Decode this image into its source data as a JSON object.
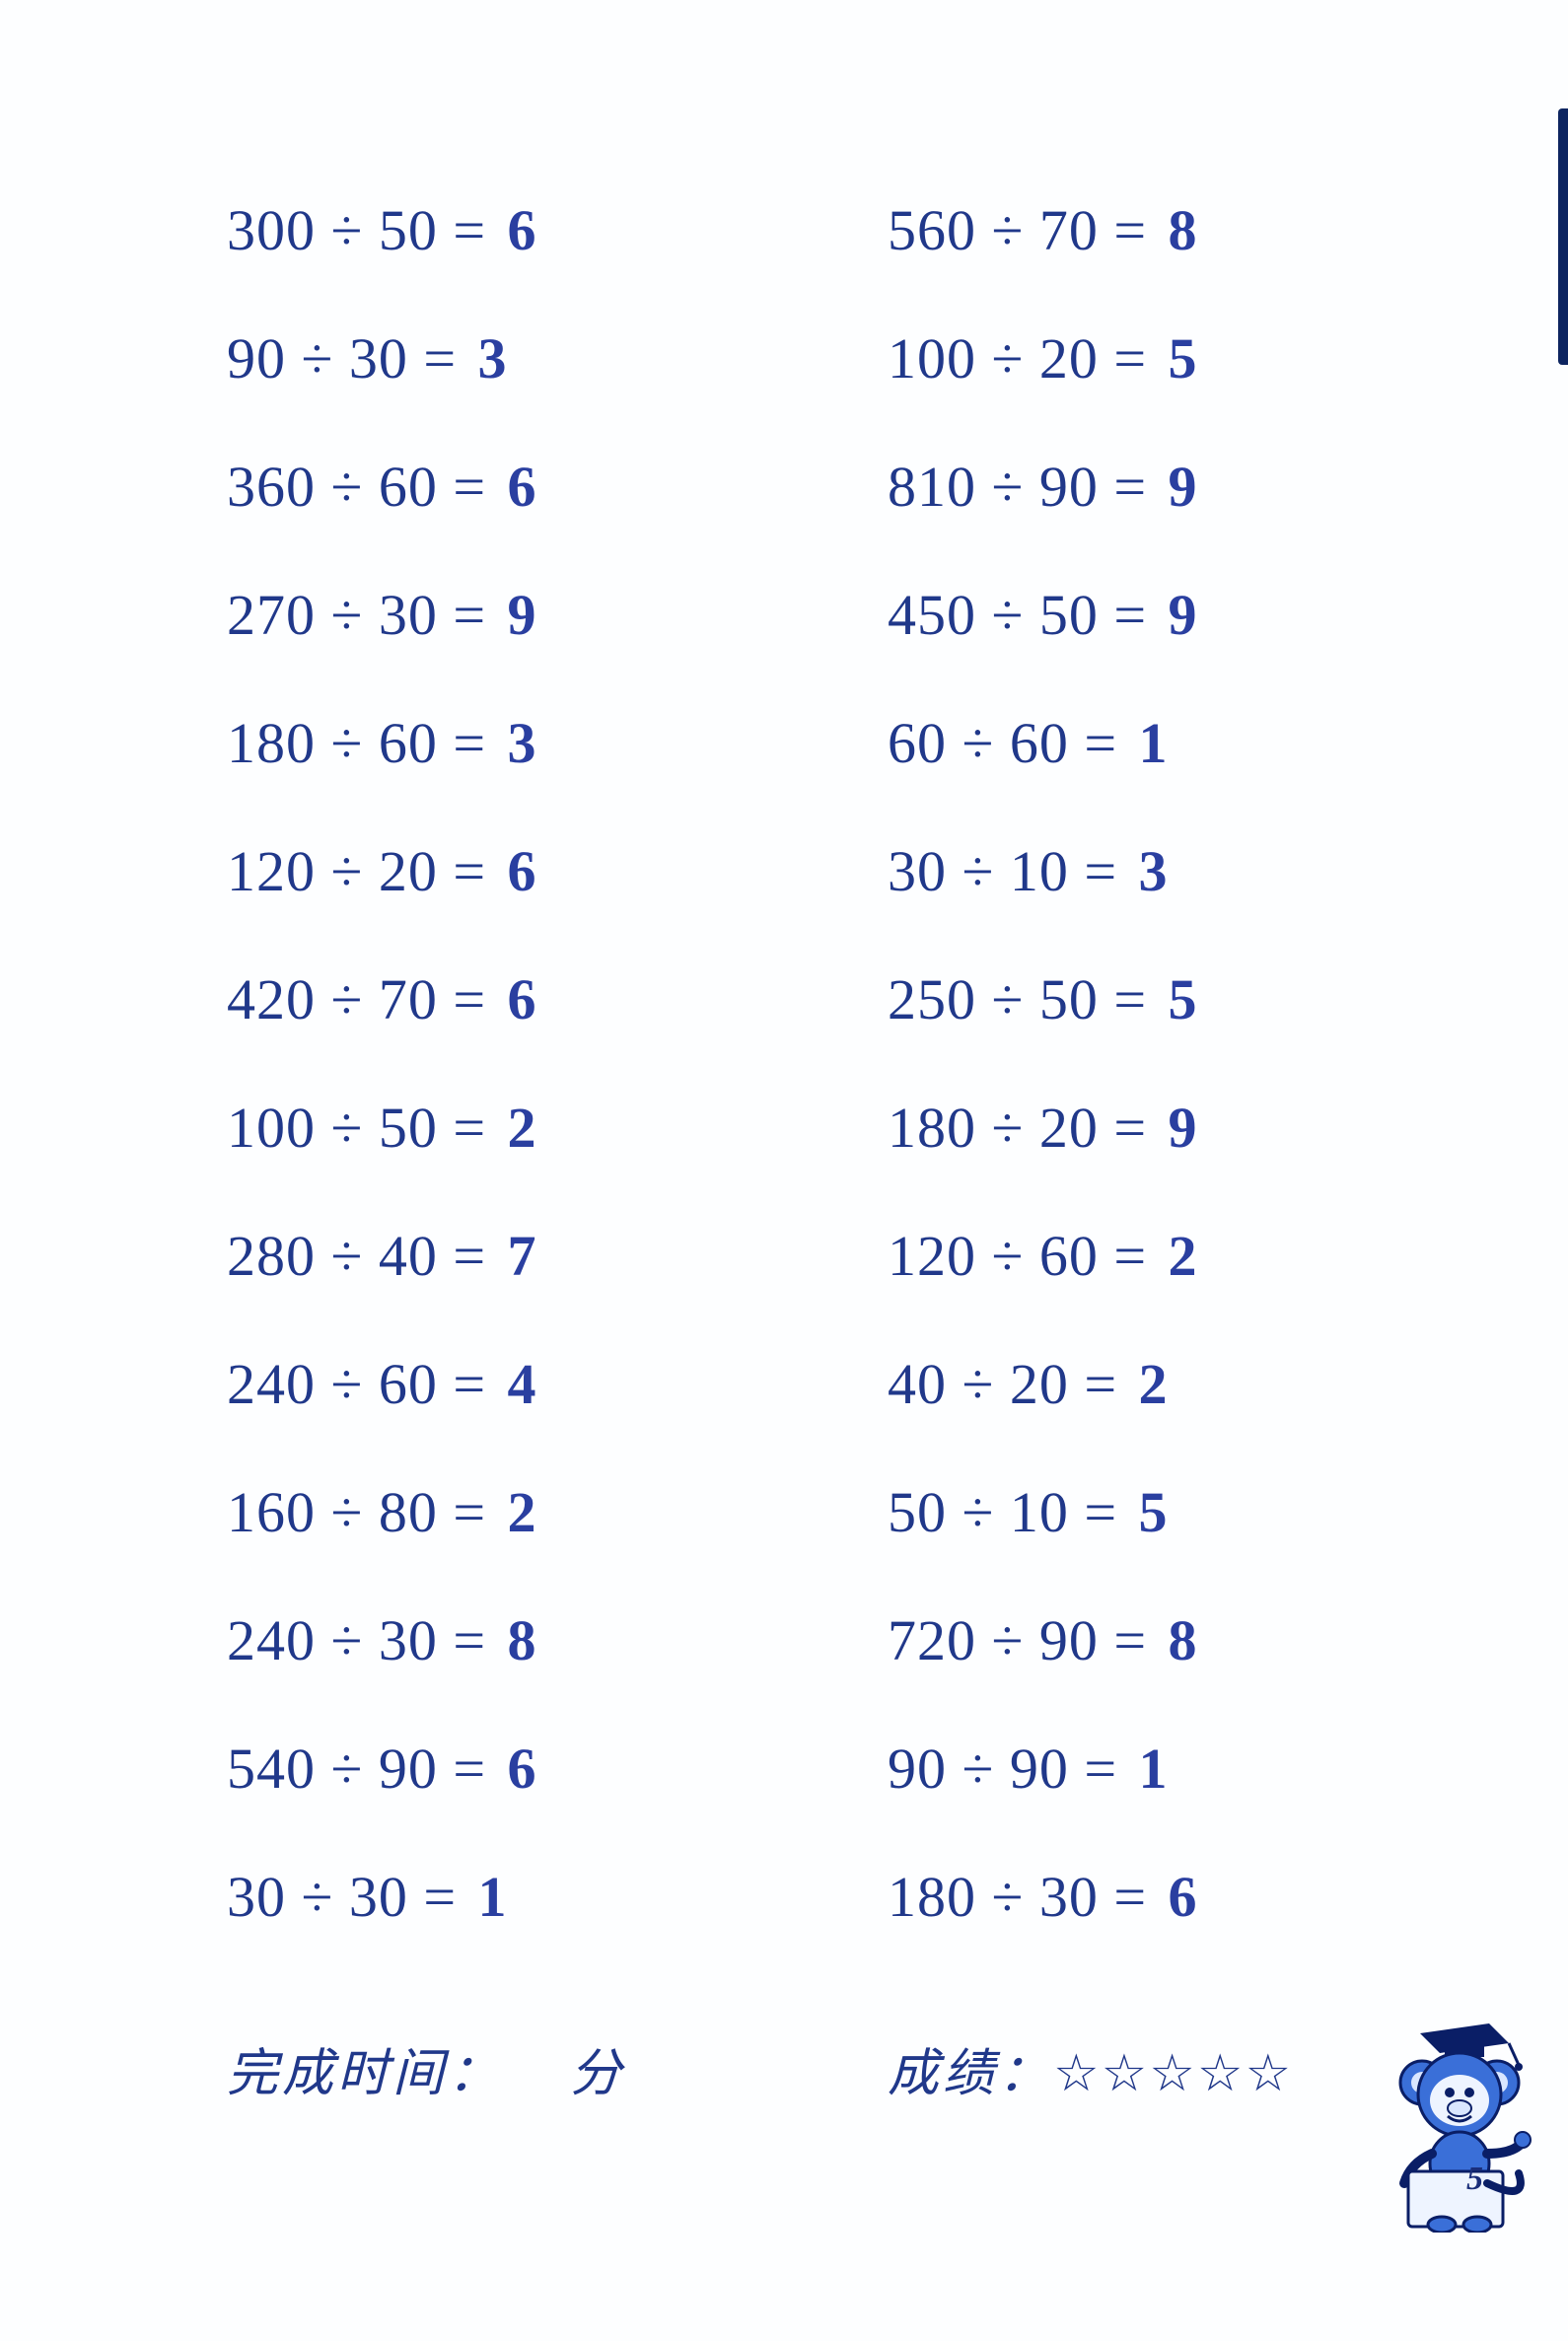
{
  "page_number": "5",
  "colors": {
    "text": "#20388a",
    "answer": "#2a3fa0",
    "background": "#fdfeff",
    "mascot_body": "#3a6fd8",
    "mascot_outline": "#0a1e66",
    "mascot_paper": "#eef4ff"
  },
  "typography": {
    "problem_fontsize_pt": 44,
    "answer_fontsize_pt": 44,
    "footer_fontsize_pt": 39
  },
  "left_column": [
    {
      "dividend": "300",
      "divisor": "50",
      "answer": "6"
    },
    {
      "dividend": "90",
      "divisor": "30",
      "answer": "3"
    },
    {
      "dividend": "360",
      "divisor": "60",
      "answer": "6"
    },
    {
      "dividend": "270",
      "divisor": "30",
      "answer": "9"
    },
    {
      "dividend": "180",
      "divisor": "60",
      "answer": "3"
    },
    {
      "dividend": "120",
      "divisor": "20",
      "answer": "6"
    },
    {
      "dividend": "420",
      "divisor": "70",
      "answer": "6"
    },
    {
      "dividend": "100",
      "divisor": "50",
      "answer": "2"
    },
    {
      "dividend": "280",
      "divisor": "40",
      "answer": "7"
    },
    {
      "dividend": "240",
      "divisor": "60",
      "answer": "4"
    },
    {
      "dividend": "160",
      "divisor": "80",
      "answer": "2"
    },
    {
      "dividend": "240",
      "divisor": "30",
      "answer": "8"
    },
    {
      "dividend": "540",
      "divisor": "90",
      "answer": "6"
    },
    {
      "dividend": "30",
      "divisor": "30",
      "answer": "1"
    }
  ],
  "right_column": [
    {
      "dividend": "560",
      "divisor": "70",
      "answer": "8"
    },
    {
      "dividend": "100",
      "divisor": "20",
      "answer": "5"
    },
    {
      "dividend": "810",
      "divisor": "90",
      "answer": "9"
    },
    {
      "dividend": "450",
      "divisor": "50",
      "answer": "9"
    },
    {
      "dividend": "60",
      "divisor": "60",
      "answer": "1"
    },
    {
      "dividend": "30",
      "divisor": "10",
      "answer": "3"
    },
    {
      "dividend": "250",
      "divisor": "50",
      "answer": "5"
    },
    {
      "dividend": "180",
      "divisor": "20",
      "answer": "9"
    },
    {
      "dividend": "120",
      "divisor": "60",
      "answer": "2"
    },
    {
      "dividend": "40",
      "divisor": "20",
      "answer": "2"
    },
    {
      "dividend": "50",
      "divisor": "10",
      "answer": "5"
    },
    {
      "dividend": "720",
      "divisor": "90",
      "answer": "8"
    },
    {
      "dividend": "90",
      "divisor": "90",
      "answer": "1"
    },
    {
      "dividend": "180",
      "divisor": "30",
      "answer": "6"
    }
  ],
  "footer": {
    "time_label": "完成时间：",
    "time_unit": "分",
    "score_label": "成绩：",
    "stars": "☆☆☆☆☆"
  }
}
